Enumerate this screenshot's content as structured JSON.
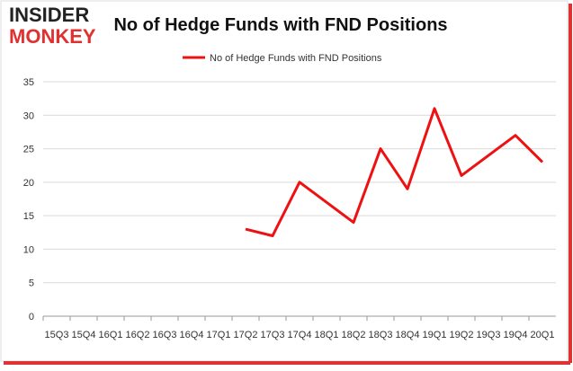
{
  "logo": {
    "line1": "INSIDER",
    "line2": "MONKEY"
  },
  "chart_data": {
    "type": "line",
    "title": "No of Hedge Funds with FND Positions",
    "categories": [
      "15Q3",
      "15Q4",
      "16Q1",
      "16Q2",
      "16Q3",
      "16Q4",
      "17Q1",
      "17Q2",
      "17Q3",
      "17Q4",
      "18Q1",
      "18Q2",
      "18Q3",
      "18Q4",
      "19Q1",
      "19Q2",
      "19Q3",
      "19Q4",
      "20Q1"
    ],
    "series": [
      {
        "name": "No of Hedge Funds with FND Positions",
        "color": "#ee1111",
        "values": [
          null,
          null,
          null,
          null,
          null,
          null,
          null,
          13,
          12,
          20,
          17,
          14,
          25,
          19,
          31,
          21,
          24,
          27,
          23
        ]
      }
    ],
    "ylim": [
      0,
      35
    ],
    "yticks": [
      0,
      5,
      10,
      15,
      20,
      25,
      30,
      35
    ],
    "grid": true,
    "legend": "top"
  }
}
